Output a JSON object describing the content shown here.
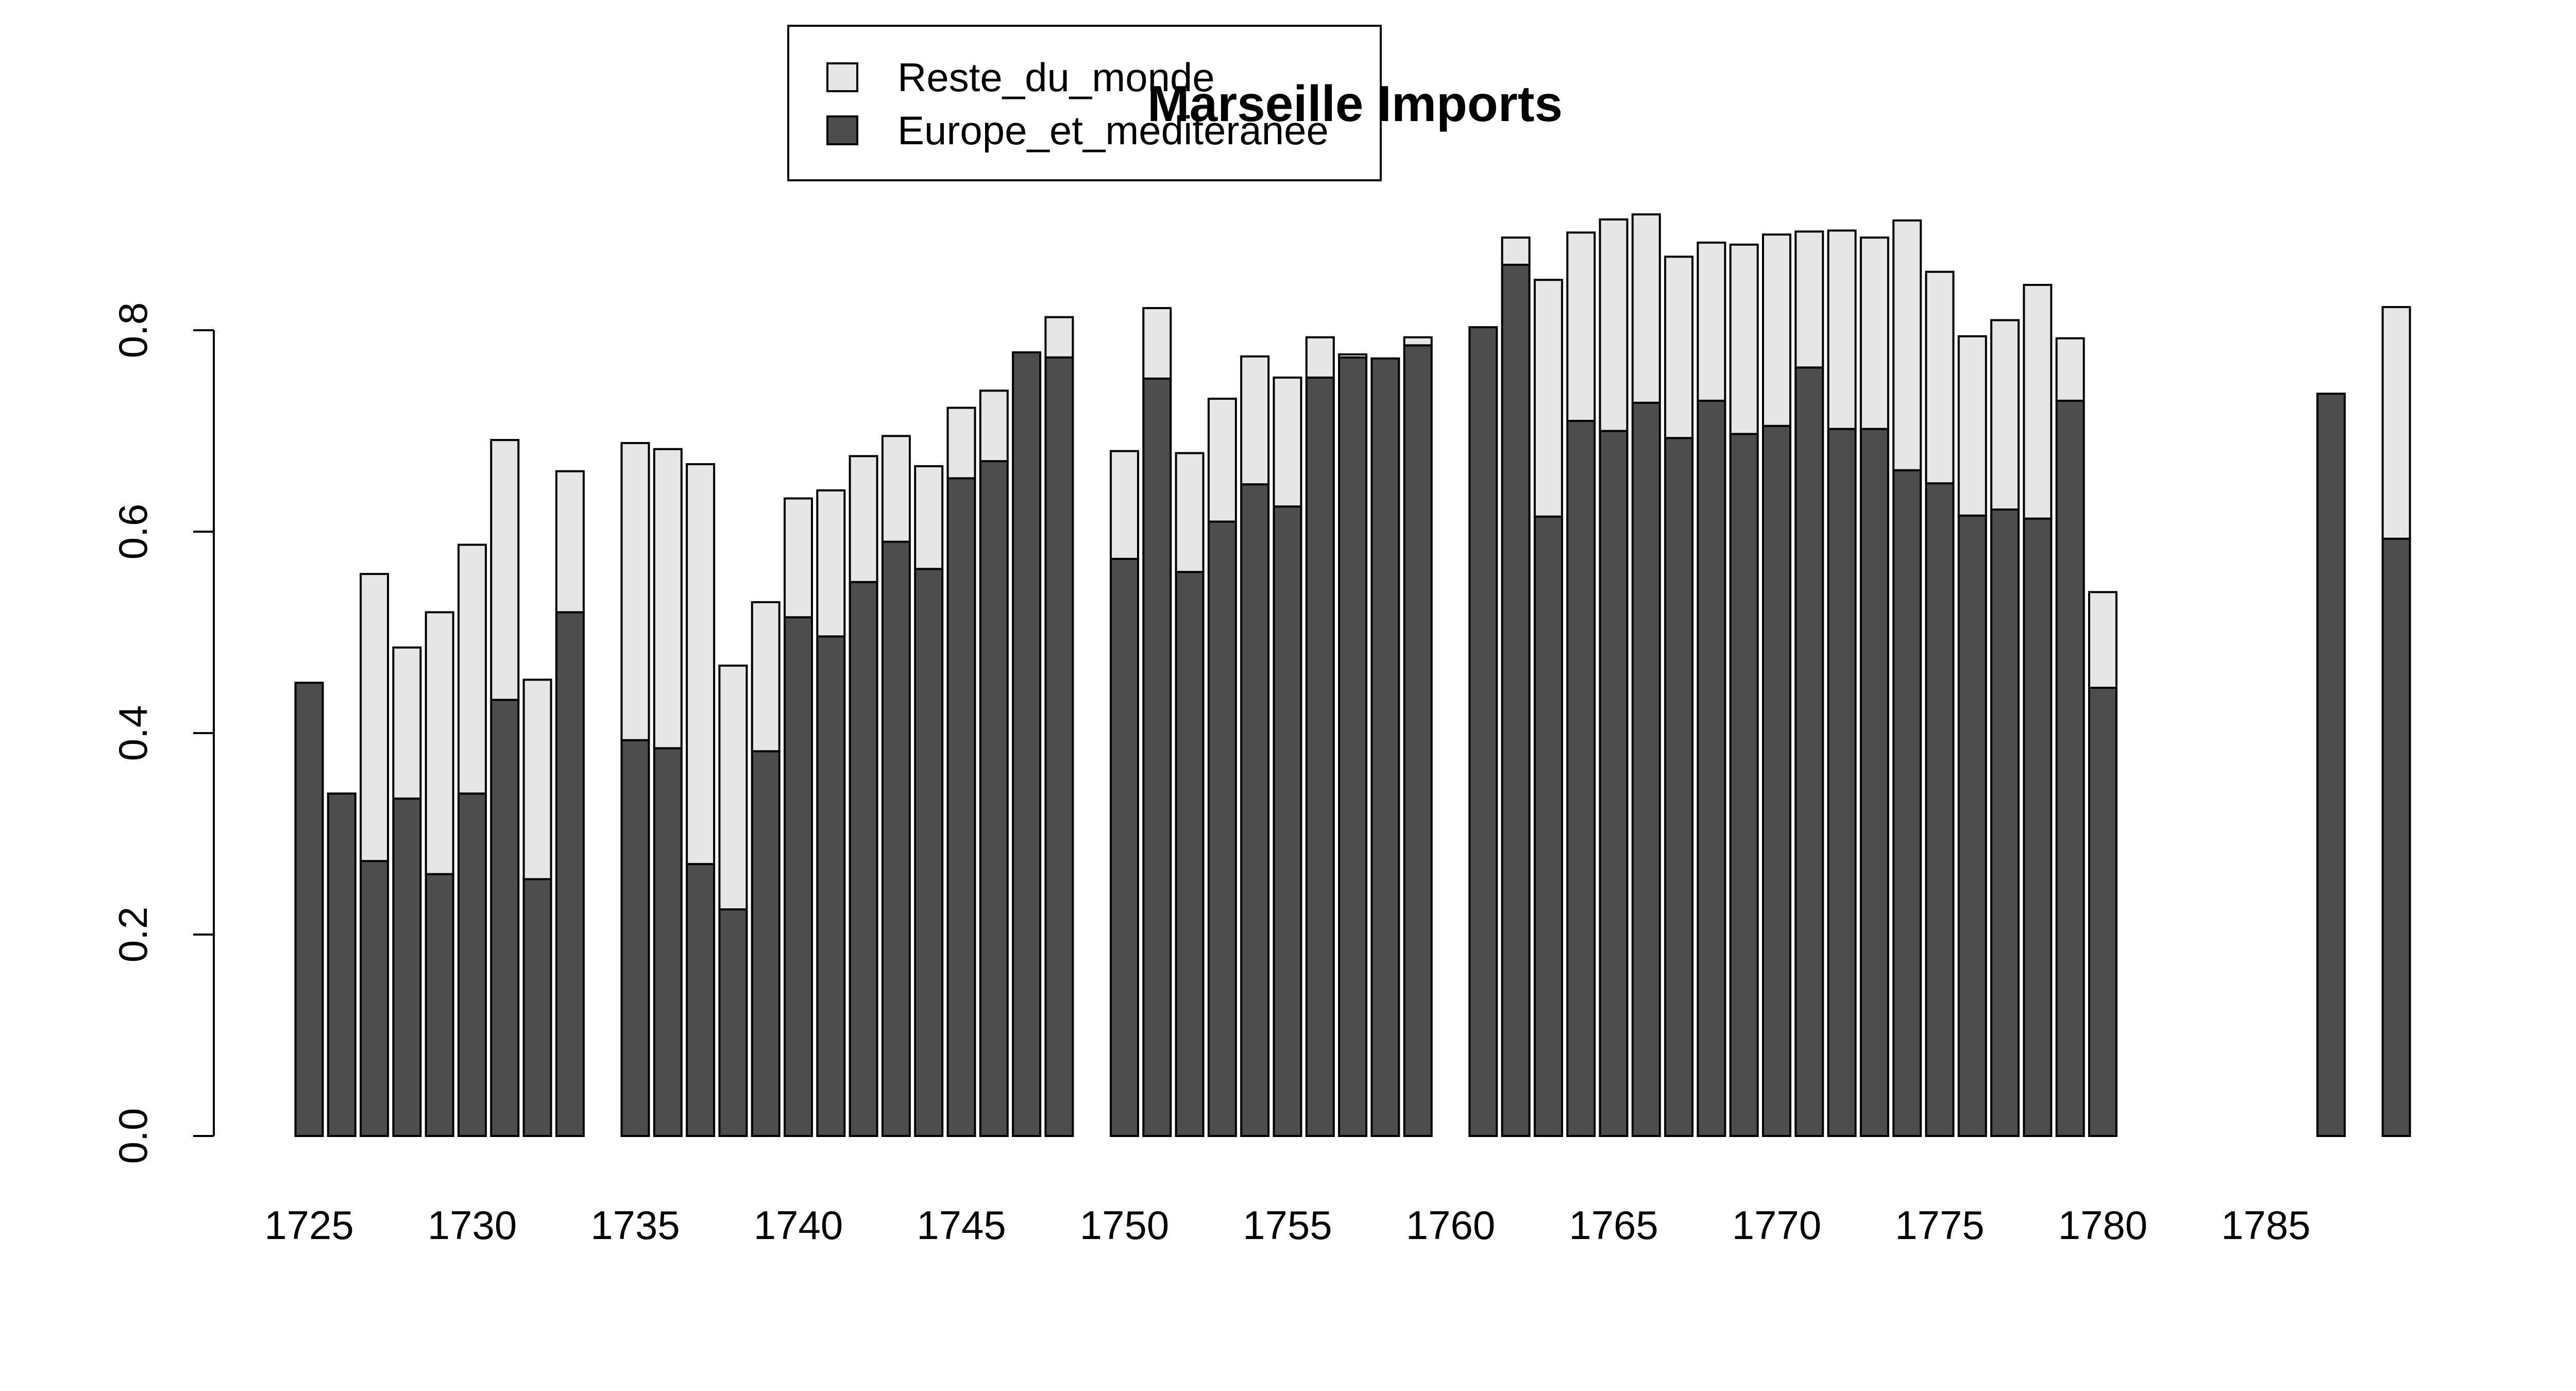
{
  "chart_data": {
    "type": "bar",
    "stacked": true,
    "title": "Marseille Imports",
    "xlabel": "",
    "ylabel": "",
    "ylim": [
      0,
      0.95
    ],
    "y_ticks": [
      "0.0",
      "0.2",
      "0.4",
      "0.6",
      "0.8"
    ],
    "x_ticks": [
      "1725",
      "1730",
      "1735",
      "1740",
      "1745",
      "1750",
      "1755",
      "1760",
      "1765",
      "1770",
      "1775",
      "1780",
      "1785"
    ],
    "legend_position": "top-center",
    "grid": false,
    "categories": [
      1725,
      1726,
      1727,
      1728,
      1729,
      1730,
      1731,
      1732,
      1733,
      1734,
      1735,
      1736,
      1737,
      1738,
      1739,
      1740,
      1741,
      1742,
      1743,
      1744,
      1745,
      1746,
      1747,
      1748,
      1749,
      1750,
      1751,
      1752,
      1753,
      1754,
      1755,
      1756,
      1757,
      1758,
      1759,
      1760,
      1761,
      1762,
      1763,
      1764,
      1765,
      1766,
      1767,
      1768,
      1769,
      1770,
      1771,
      1772,
      1773,
      1774,
      1775,
      1776,
      1777,
      1778,
      1779,
      1780,
      1781,
      1782,
      1783,
      1784,
      1785,
      1786,
      1787,
      1788,
      1789
    ],
    "series": [
      {
        "name": "Europe_et_mediteranee",
        "color": "#4d4d4d",
        "values": [
          0.45,
          0.34,
          0.273,
          0.335,
          0.26,
          0.34,
          0.433,
          0.255,
          0.52,
          null,
          0.393,
          0.385,
          0.27,
          0.225,
          0.382,
          0.515,
          0.496,
          0.55,
          0.59,
          0.563,
          0.653,
          0.67,
          0.778,
          0.773,
          null,
          0.573,
          0.752,
          0.56,
          0.61,
          0.647,
          0.625,
          0.753,
          0.773,
          0.772,
          0.785,
          null,
          0.803,
          0.865,
          0.615,
          0.71,
          0.7,
          0.728,
          0.693,
          0.73,
          0.697,
          0.705,
          0.763,
          0.702,
          0.702,
          0.661,
          0.648,
          0.616,
          0.622,
          0.613,
          0.73,
          0.445,
          null,
          null,
          null,
          null,
          null,
          null,
          0.737,
          null,
          0.593
        ]
      },
      {
        "name": "Reste_du_monde",
        "color": "#e6e6e6",
        "values": [
          0.0,
          0.0,
          0.285,
          0.15,
          0.26,
          0.247,
          0.258,
          0.198,
          0.14,
          null,
          0.295,
          0.297,
          0.397,
          0.242,
          0.148,
          0.118,
          0.145,
          0.125,
          0.105,
          0.102,
          0.07,
          0.07,
          0.0,
          0.04,
          null,
          0.107,
          0.07,
          0.118,
          0.122,
          0.127,
          0.128,
          0.04,
          0.003,
          0.0,
          0.008,
          null,
          0.0,
          0.027,
          0.235,
          0.187,
          0.21,
          0.187,
          0.18,
          0.157,
          0.188,
          0.19,
          0.135,
          0.197,
          0.19,
          0.248,
          0.21,
          0.178,
          0.188,
          0.232,
          0.062,
          0.095,
          null,
          null,
          null,
          null,
          null,
          null,
          0.0,
          null,
          0.23
        ]
      }
    ]
  }
}
